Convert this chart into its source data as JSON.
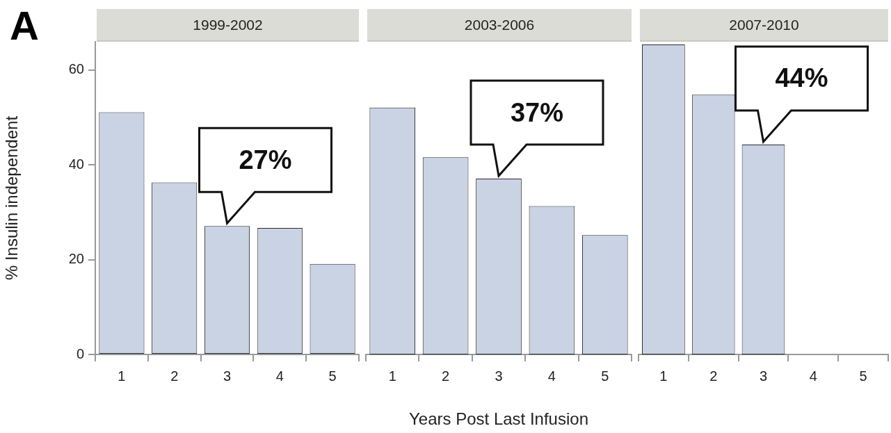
{
  "chart_data": [
    {
      "type": "bar",
      "title": "1999-2002",
      "ylabel": "% Insulin independent",
      "categories": [
        "1",
        "2",
        "3",
        "4",
        "5"
      ],
      "values": [
        51.1,
        36.3,
        27.1,
        26.7,
        19.1
      ],
      "color": "#c9d3e4",
      "ylim": [
        0,
        66
      ],
      "yticks": [
        0,
        20,
        40,
        60
      ],
      "grid": false,
      "legend": false,
      "annotations": [
        "A",
        {
          "text": "27%",
          "x": "3",
          "y": 27.1
        }
      ]
    },
    {
      "type": "bar",
      "title": "2003-2006",
      "xlabel": "Years Post Last Infusion",
      "categories": [
        "1",
        "2",
        "3",
        "4",
        "5"
      ],
      "values": [
        52.1,
        41.6,
        37.1,
        31.3,
        25.2
      ],
      "color": "#c9d3e4",
      "ylim": [
        0,
        66
      ],
      "yticks": [
        0,
        20,
        40,
        60
      ],
      "tick_labels": "x",
      "grid": false,
      "legend": false,
      "annotations": [
        {
          "text": "37%",
          "x": "3",
          "y": 37.1
        }
      ]
    },
    {
      "type": "bar",
      "title": "2007-2010",
      "categories": [
        "1",
        "2",
        "3",
        "4",
        "5"
      ],
      "values": [
        65.4,
        54.8,
        44.3,
        null,
        null
      ],
      "color": "#c9d3e4",
      "ylim": [
        0,
        66
      ],
      "yticks": [
        0,
        20,
        40,
        60
      ],
      "tick_labels": "x",
      "grid": false,
      "legend": false,
      "annotations": [
        {
          "text": "44%",
          "x": "3",
          "y": 44.3
        }
      ]
    }
  ]
}
